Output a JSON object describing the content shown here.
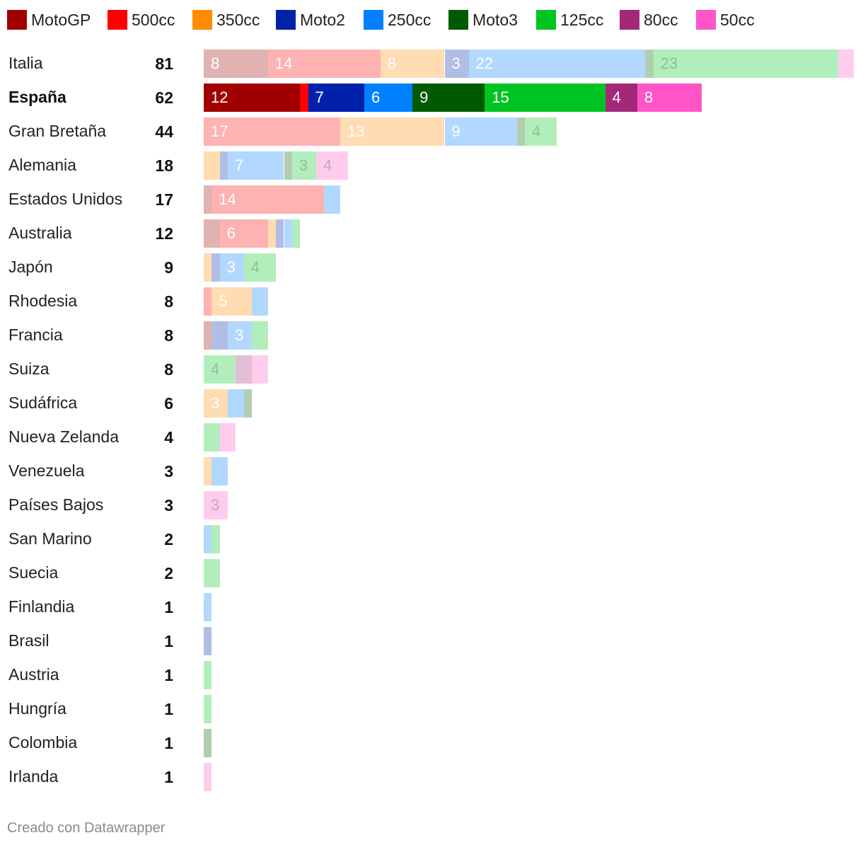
{
  "chart_data": {
    "type": "bar",
    "orientation": "horizontal",
    "stacked": true,
    "title": "",
    "highlight_country": "España",
    "series": [
      {
        "key": "motogp",
        "name": "MotoGP",
        "color": "#a10000",
        "faded": "#e0b2b2"
      },
      {
        "key": "c500",
        "name": "500cc",
        "color": "#ff0000",
        "faded": "#ffb2b2"
      },
      {
        "key": "c350",
        "name": "350cc",
        "color": "#ff8c00",
        "faded": "#ffdcb2"
      },
      {
        "key": "moto2",
        "name": "Moto2",
        "color": "#0022aa",
        "faded": "#b2bde5"
      },
      {
        "key": "c250",
        "name": "250cc",
        "color": "#0080ff",
        "faded": "#b2d8ff"
      },
      {
        "key": "moto3",
        "name": "Moto3",
        "color": "#005a00",
        "faded": "#b2cdb2"
      },
      {
        "key": "c125",
        "name": "125cc",
        "color": "#00c421",
        "faded": "#b2eebc"
      },
      {
        "key": "c80",
        "name": "80cc",
        "color": "#a3287a",
        "faded": "#e3bed7"
      },
      {
        "key": "c50",
        "name": "50cc",
        "color": "#ff55c8",
        "faded": "#ffccee"
      }
    ],
    "rows": [
      {
        "country": "Italia",
        "total": "81",
        "values": {
          "motogp": 8,
          "c500": 14,
          "c350": 8,
          "moto2": 3,
          "c250": 22,
          "moto3": 1,
          "c125": 23,
          "c50": 2
        }
      },
      {
        "country": "España",
        "total": "62",
        "values": {
          "motogp": 12,
          "c500": 1,
          "moto2": 7,
          "c250": 6,
          "moto3": 9,
          "c125": 15,
          "c80": 4,
          "c50": 8
        }
      },
      {
        "country": "Gran Bretaña",
        "total": "44",
        "values": {
          "c500": 17,
          "c350": 13,
          "c250": 9,
          "moto3": 1,
          "c125": 4
        }
      },
      {
        "country": "Alemania",
        "total": "18",
        "values": {
          "c350": 2,
          "moto2": 1,
          "c250": 7,
          "moto3": 1,
          "c125": 3,
          "c50": 4
        }
      },
      {
        "country": "Estados Unidos",
        "total": "17",
        "values": {
          "motogp": 1,
          "c500": 14,
          "c250": 2
        }
      },
      {
        "country": "Australia",
        "total": "12",
        "values": {
          "motogp": 2,
          "c500": 6,
          "c350": 1,
          "moto2": 1,
          "c250": 1,
          "c125": 1
        }
      },
      {
        "country": "Japón",
        "total": "9",
        "values": {
          "c350": 1,
          "moto2": 1,
          "c250": 3,
          "c125": 4
        }
      },
      {
        "country": "Rhodesia",
        "total": "8",
        "values": {
          "c500": 1,
          "c350": 5,
          "c250": 2
        }
      },
      {
        "country": "Francia",
        "total": "8",
        "values": {
          "motogp": 1,
          "moto2": 2,
          "c250": 3,
          "c125": 2
        }
      },
      {
        "country": "Suiza",
        "total": "8",
        "values": {
          "c125": 4,
          "c80": 2,
          "c50": 2
        }
      },
      {
        "country": "Sudáfrica",
        "total": "6",
        "values": {
          "c350": 3,
          "c250": 2,
          "moto3": 1
        }
      },
      {
        "country": "Nueva Zelanda",
        "total": "4",
        "values": {
          "c125": 2,
          "c50": 2
        }
      },
      {
        "country": "Venezuela",
        "total": "3",
        "values": {
          "c350": 1,
          "c250": 2
        }
      },
      {
        "country": "Países Bajos",
        "total": "3",
        "values": {
          "c50": 3
        }
      },
      {
        "country": "San Marino",
        "total": "2",
        "values": {
          "c250": 1,
          "c125": 1
        }
      },
      {
        "country": "Suecia",
        "total": "2",
        "values": {
          "c125": 2
        }
      },
      {
        "country": "Finlandia",
        "total": "1",
        "values": {
          "c250": 1
        }
      },
      {
        "country": "Brasil",
        "total": "1",
        "values": {
          "moto2": 1
        }
      },
      {
        "country": "Austria",
        "total": "1",
        "values": {
          "c125": 1
        }
      },
      {
        "country": "Hungría",
        "total": "1",
        "values": {
          "c125": 1
        }
      },
      {
        "country": "Colombia",
        "total": "1",
        "values": {
          "moto3": 1
        }
      },
      {
        "country": "Irlanda",
        "total": "1",
        "values": {
          "c50": 1
        }
      }
    ],
    "label_min_value": 3
  },
  "footer": {
    "credit": "Creado con Datawrapper"
  }
}
